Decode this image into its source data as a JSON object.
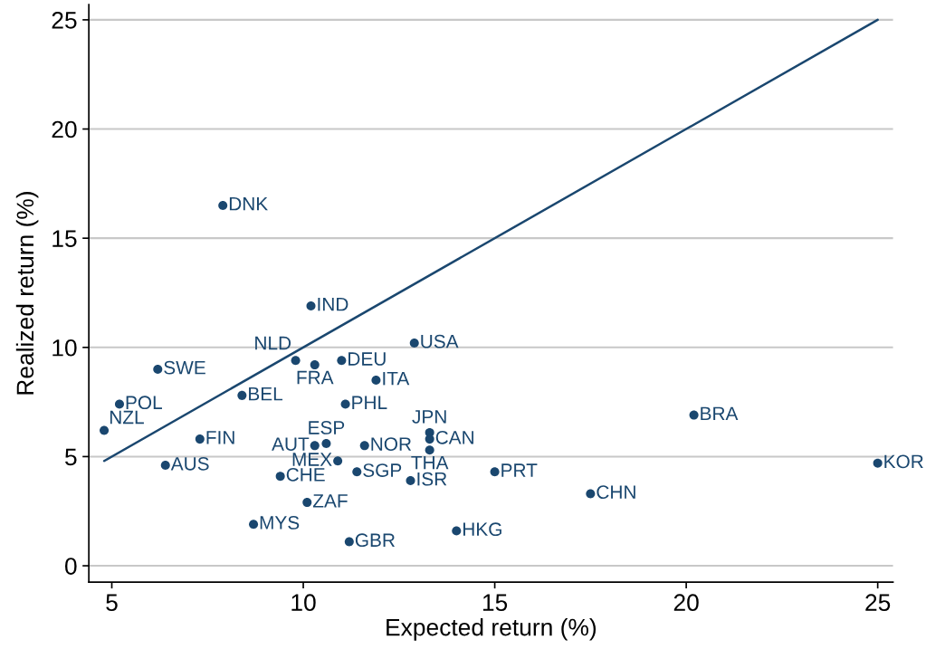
{
  "chart_data": {
    "type": "scatter",
    "xlabel": "Expected return (%)",
    "ylabel": "Realized return (%)",
    "xlim": [
      4.4,
      25.4
    ],
    "xticks": [
      5,
      10,
      15,
      20,
      25
    ],
    "ylim": [
      -0.75,
      25.7
    ],
    "yticks": [
      0,
      5,
      10,
      15,
      20,
      25
    ],
    "grid": "y",
    "marker": "circle",
    "series": [
      {
        "color": "#1a476f",
        "x": [
          4.8,
          5.2,
          6.2,
          6.4,
          7.3,
          7.9,
          8.4,
          8.7,
          9.4,
          9.8,
          10.1,
          10.2,
          10.3,
          10.3,
          10.6,
          10.9,
          11.0,
          11.1,
          11.2,
          11.4,
          11.6,
          11.9,
          12.8,
          12.9,
          13.3,
          13.3,
          13.3,
          14.0,
          15.0,
          17.5,
          20.2,
          25.0
        ],
        "values": [
          6.2,
          7.4,
          9.0,
          4.6,
          5.8,
          16.5,
          7.8,
          1.9,
          4.1,
          9.4,
          2.9,
          11.9,
          9.2,
          5.5,
          5.6,
          4.8,
          9.4,
          7.4,
          1.1,
          4.3,
          5.5,
          8.5,
          3.9,
          10.2,
          5.3,
          6.1,
          5.8,
          1.6,
          4.3,
          3.3,
          6.9,
          4.7
        ],
        "value_labels": [
          "NZL",
          "POL",
          "SWE",
          "AUS",
          "FIN",
          "DNK",
          "BEL",
          "MYS",
          "CHE",
          "NLD",
          "ZAF",
          "IND",
          "FRA",
          "AUT",
          "ESP",
          "MEX",
          "DEU",
          "PHL",
          "GBR",
          "SGP",
          "NOR",
          "ITA",
          "ISR",
          "USA",
          "THA",
          "JPN",
          "CAN",
          "HKG",
          "PRT",
          "CHN",
          "BRA",
          "KOR"
        ]
      },
      {
        "type": "line",
        "color": "#1a476f",
        "marker": "none",
        "line_style": "solid",
        "x": [
          4.8,
          25.0
        ],
        "values": [
          4.8,
          25.0
        ]
      }
    ]
  }
}
